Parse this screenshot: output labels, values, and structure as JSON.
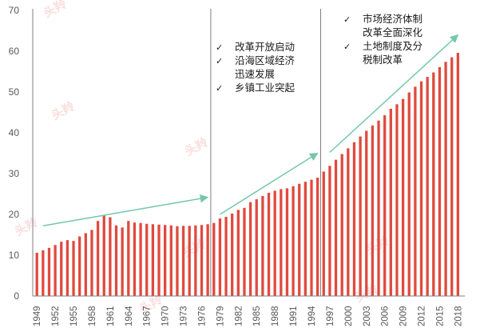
{
  "chart_data": {
    "type": "bar",
    "ylim": [
      0,
      70
    ],
    "yticks": [
      0,
      10,
      20,
      30,
      40,
      50,
      60,
      70
    ],
    "grid": false,
    "categories": [
      "1949",
      "1950",
      "1951",
      "1952",
      "1953",
      "1954",
      "1955",
      "1956",
      "1957",
      "1958",
      "1959",
      "1960",
      "1961",
      "1962",
      "1963",
      "1964",
      "1965",
      "1966",
      "1967",
      "1968",
      "1969",
      "1970",
      "1971",
      "1972",
      "1973",
      "1974",
      "1975",
      "1976",
      "1977",
      "1978",
      "1979",
      "1980",
      "1981",
      "1982",
      "1983",
      "1984",
      "1985",
      "1986",
      "1987",
      "1988",
      "1989",
      "1990",
      "1991",
      "1992",
      "1993",
      "1994",
      "1995",
      "1996",
      "1997",
      "1998",
      "1999",
      "2000",
      "2001",
      "2002",
      "2003",
      "2004",
      "2005",
      "2006",
      "2007",
      "2008",
      "2009",
      "2010",
      "2011",
      "2012",
      "2013",
      "2014",
      "2015",
      "2016",
      "2017",
      "2018"
    ],
    "xtick_labels": [
      "1949",
      "1952",
      "1955",
      "1958",
      "1961",
      "1964",
      "1967",
      "1970",
      "1973",
      "1976",
      "1979",
      "1982",
      "1985",
      "1988",
      "1991",
      "1994",
      "1997",
      "2000",
      "2003",
      "2006",
      "2009",
      "2012",
      "2015",
      "2018"
    ],
    "values": [
      10.6,
      11.2,
      11.8,
      12.5,
      13.3,
      13.7,
      13.5,
      14.6,
      15.4,
      16.2,
      18.4,
      19.8,
      19.3,
      17.3,
      16.8,
      18.4,
      18.0,
      17.9,
      17.7,
      17.6,
      17.5,
      17.4,
      17.3,
      17.1,
      17.2,
      17.2,
      17.3,
      17.4,
      17.6,
      17.9,
      19.0,
      19.4,
      20.2,
      21.1,
      21.6,
      23.0,
      23.7,
      24.5,
      25.3,
      25.8,
      26.2,
      26.4,
      26.9,
      27.5,
      28.0,
      28.5,
      29.0,
      30.5,
      31.9,
      33.4,
      34.8,
      36.2,
      37.7,
      39.1,
      40.5,
      41.8,
      43.0,
      44.3,
      45.9,
      47.0,
      48.3,
      49.9,
      51.3,
      52.6,
      53.7,
      54.8,
      56.1,
      57.4,
      58.5,
      59.6
    ],
    "color": "#e04a3e",
    "trend_color": "#74c7aa",
    "divider_color": "#7f7f7f",
    "dividers": [
      "1978",
      "1996"
    ],
    "trend_arrows": [
      {
        "from": [
          "1950",
          17.2
        ],
        "to": [
          "1977",
          24.2
        ]
      },
      {
        "from": [
          "1979",
          20.0
        ],
        "to": [
          "1995",
          35.0
        ]
      },
      {
        "from": [
          "1997",
          35.2
        ],
        "to": [
          "2018",
          64.0
        ]
      }
    ],
    "annotations": [
      {
        "lines": [
          {
            "check": "✓",
            "text": "改革开放启动"
          },
          {
            "check": "✓",
            "text": "沿海区域经济"
          },
          {
            "check": "",
            "text": "迅速发展"
          },
          {
            "check": "✓",
            "text": "乡镇工业突起"
          }
        ]
      },
      {
        "lines": [
          {
            "check": "✓",
            "text": "市场经济体制"
          },
          {
            "check": "",
            "text": "改革全面深化"
          },
          {
            "check": "✓",
            "text": "土地制度及分"
          },
          {
            "check": "",
            "text": "税制改革"
          }
        ]
      }
    ]
  },
  "watermark": {
    "text": "头羚"
  }
}
